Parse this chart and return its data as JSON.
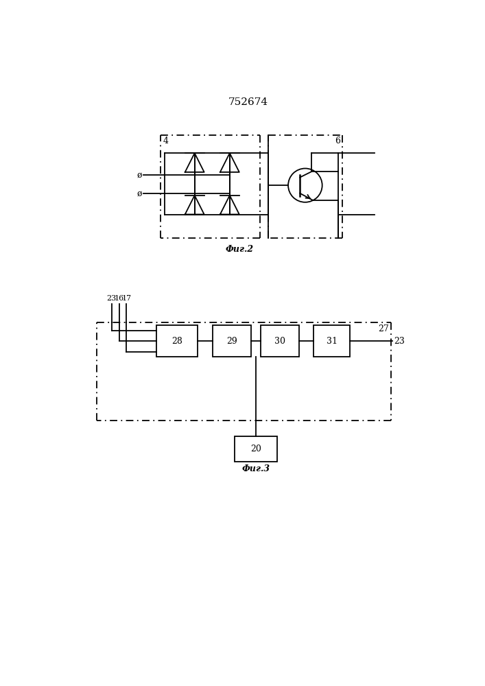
{
  "title": "752674",
  "title_fontsize": 11,
  "fig2_label_4": "4",
  "fig2_label_6": "6",
  "fig2_caption": "Фиг.2",
  "fig3_caption": "Фиг.3",
  "labels_input": [
    "23",
    "16",
    "17"
  ],
  "label_27": "27",
  "label_23_right": "23",
  "box_labels": [
    "28",
    "29",
    "30",
    "31"
  ],
  "box20_label": "20"
}
